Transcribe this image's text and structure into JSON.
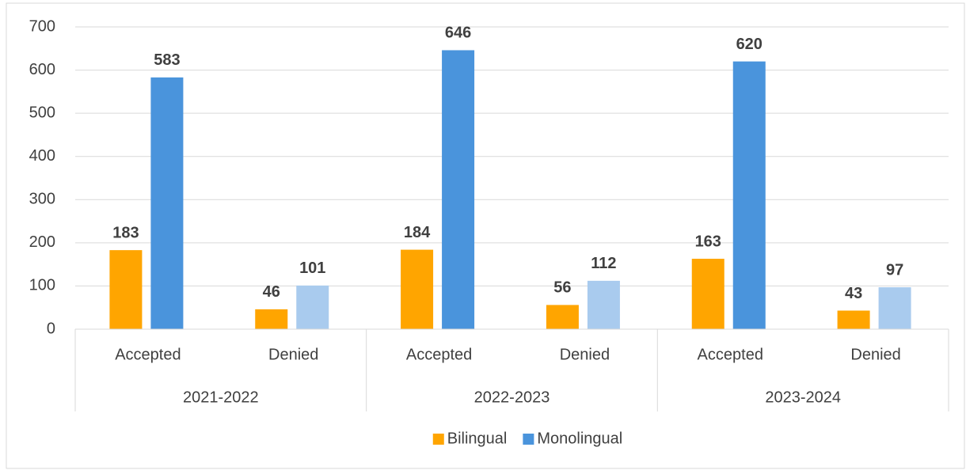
{
  "chart_data": {
    "type": "bar",
    "categories": [
      "Accepted",
      "Denied",
      "Accepted",
      "Denied",
      "Accepted",
      "Denied"
    ],
    "groups": [
      "2021-2022",
      "2022-2023",
      "2023-2024"
    ],
    "series": [
      {
        "name": "Bilingual",
        "color": "#ffa500",
        "colors": [
          "#ffa500",
          "#ffa500",
          "#ffa500",
          "#ffa500",
          "#ffa500",
          "#ffa500"
        ],
        "values": [
          183,
          46,
          184,
          56,
          163,
          43
        ]
      },
      {
        "name": "Monolingual",
        "color": "#4a94dc",
        "colors": [
          "#4a94dc",
          "#a9cbee",
          "#4a94dc",
          "#a9cbee",
          "#4a94dc",
          "#a9cbee"
        ],
        "values": [
          583,
          101,
          646,
          112,
          620,
          97
        ]
      }
    ],
    "ylim": [
      0,
      700
    ],
    "yticks": [
      0,
      100,
      200,
      300,
      400,
      500,
      600,
      700
    ],
    "grid": true,
    "legend": "bottom"
  }
}
